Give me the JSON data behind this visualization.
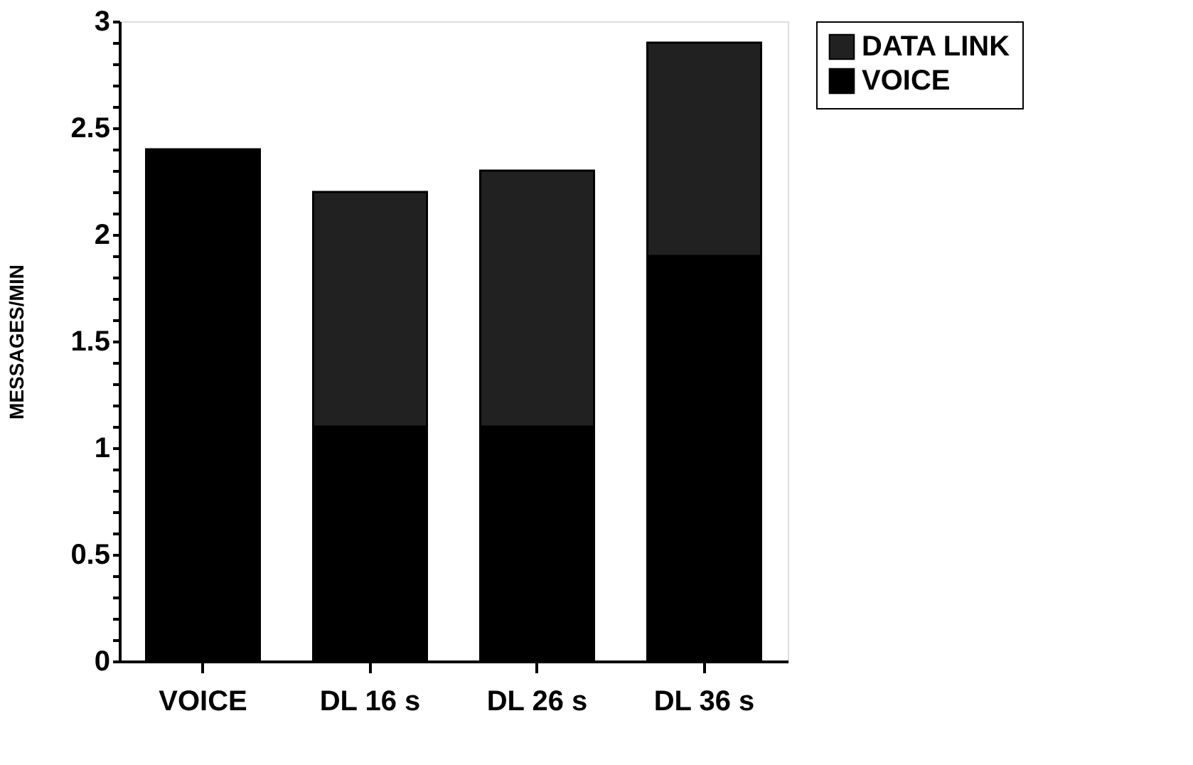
{
  "chart_data": {
    "type": "bar",
    "stacked": true,
    "ylabel": "MESSAGES/MIN",
    "categories": [
      "VOICE",
      "DL 16 s",
      "DL 26 s",
      "DL 36 s"
    ],
    "series": [
      {
        "name": "VOICE",
        "color": "#000000",
        "values": [
          2.4,
          1.1,
          1.1,
          1.9
        ]
      },
      {
        "name": "DATA LINK",
        "color": "#212121",
        "values": [
          null,
          1.1,
          1.2,
          1.0
        ]
      }
    ],
    "ylim": [
      0,
      3
    ],
    "yticks": [
      0,
      {
        "value": 0.1,
        "label": null
      },
      {
        "value": 0.2,
        "label": null
      },
      {
        "value": 0.3,
        "label": null
      },
      {
        "value": 0.4,
        "label": null
      },
      0.5,
      {
        "value": 0.6,
        "label": null
      },
      {
        "value": 0.7,
        "label": null
      },
      {
        "value": 0.8,
        "label": null
      },
      {
        "value": 0.9,
        "label": null
      },
      1,
      {
        "value": 1.1,
        "label": null
      },
      {
        "value": 1.2,
        "label": null
      },
      {
        "value": 1.3,
        "label": null
      },
      {
        "value": 1.4,
        "label": null
      },
      1.5,
      {
        "value": 1.6,
        "label": null
      },
      {
        "value": 1.7,
        "label": null
      },
      {
        "value": 1.8,
        "label": null
      },
      {
        "value": 1.9,
        "label": null
      },
      2,
      {
        "value": 2.1,
        "label": null
      },
      {
        "value": 2.2,
        "label": null
      },
      {
        "value": 2.3,
        "label": null
      },
      {
        "value": 2.4,
        "label": null
      },
      2.5,
      {
        "value": 2.6,
        "label": null
      },
      {
        "value": 2.7,
        "label": null
      },
      {
        "value": 2.8,
        "label": null
      },
      {
        "value": 2.9,
        "label": null
      },
      3
    ],
    "grid": false,
    "legend": "right"
  }
}
